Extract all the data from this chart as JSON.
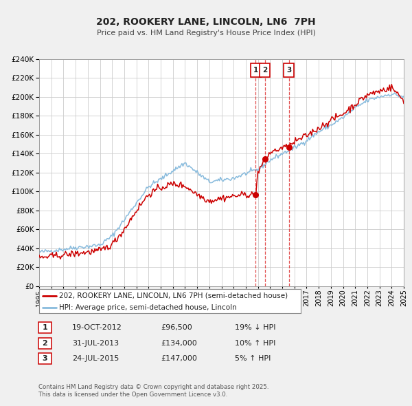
{
  "title": "202, ROOKERY LANE, LINCOLN, LN6  7PH",
  "subtitle": "Price paid vs. HM Land Registry's House Price Index (HPI)",
  "legend_line1": "202, ROOKERY LANE, LINCOLN, LN6 7PH (semi-detached house)",
  "legend_line2": "HPI: Average price, semi-detached house, Lincoln",
  "transaction_color": "#cc0000",
  "hpi_color": "#88bbdd",
  "background_color": "#f0f0f0",
  "plot_bg_color": "#ffffff",
  "grid_color": "#cccccc",
  "ylim": [
    0,
    240000
  ],
  "xlim": [
    1995,
    2025
  ],
  "yticks": [
    0,
    20000,
    40000,
    60000,
    80000,
    100000,
    120000,
    140000,
    160000,
    180000,
    200000,
    220000,
    240000
  ],
  "transactions": [
    {
      "date_num": 2012.8,
      "price": 96500,
      "label": "1"
    },
    {
      "date_num": 2013.58,
      "price": 134000,
      "label": "2"
    },
    {
      "date_num": 2015.56,
      "price": 147000,
      "label": "3"
    }
  ],
  "vlines": [
    2012.8,
    2013.58,
    2015.56
  ],
  "table_rows": [
    {
      "num": "1",
      "date": "19-OCT-2012",
      "price": "£96,500",
      "hpi": "19% ↓ HPI"
    },
    {
      "num": "2",
      "date": "31-JUL-2013",
      "price": "£134,000",
      "hpi": "10% ↑ HPI"
    },
    {
      "num": "3",
      "date": "24-JUL-2015",
      "price": "£147,000",
      "hpi": "5% ↑ HPI"
    }
  ],
  "footer": "Contains HM Land Registry data © Crown copyright and database right 2025.\nThis data is licensed under the Open Government Licence v3.0.",
  "hpi_key_years": [
    1995,
    1996,
    1997,
    1998,
    1999,
    2000,
    2001,
    2002,
    2003,
    2004,
    2005,
    2006,
    2007,
    2008,
    2009,
    2010,
    2011,
    2012,
    2013,
    2014,
    2015,
    2016,
    2017,
    2018,
    2019,
    2020,
    2021,
    2022,
    2023,
    2024,
    2025
  ],
  "hpi_key_vals": [
    36000,
    37500,
    39000,
    41000,
    42000,
    43500,
    53000,
    70000,
    88000,
    105000,
    113000,
    122000,
    130000,
    120000,
    110000,
    112000,
    114000,
    119000,
    123000,
    133000,
    140000,
    146000,
    154000,
    163000,
    170000,
    178000,
    188000,
    196000,
    200000,
    203000,
    200000
  ],
  "prop_key_years": [
    1995,
    1996,
    1997,
    1998,
    1999,
    2000,
    2001,
    2002,
    2003,
    2004,
    2005,
    2006,
    2007,
    2008,
    2009,
    2010,
    2011,
    2012,
    2012.8,
    2013,
    2013.58,
    2014,
    2015,
    2015.56,
    2016,
    2017,
    2018,
    2019,
    2020,
    2021,
    2022,
    2023,
    2024,
    2025
  ],
  "prop_key_vals": [
    30000,
    31500,
    33000,
    34500,
    36000,
    37500,
    44000,
    60000,
    80000,
    97000,
    104000,
    108000,
    106000,
    97000,
    90000,
    93000,
    95000,
    97000,
    96500,
    120000,
    134000,
    141000,
    146000,
    147000,
    152000,
    159000,
    167000,
    175000,
    182000,
    192000,
    202000,
    206000,
    210000,
    196000
  ]
}
